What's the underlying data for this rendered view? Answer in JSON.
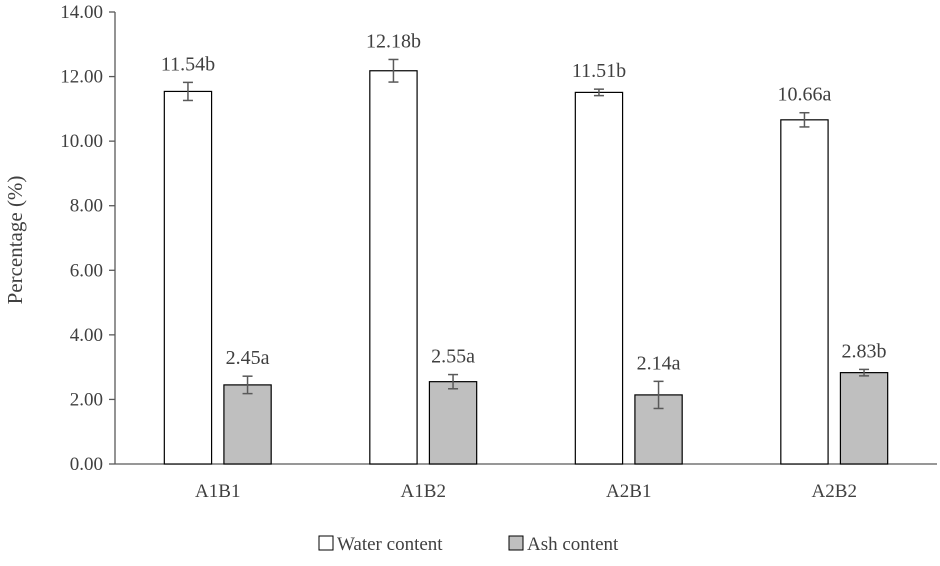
{
  "chart_data": {
    "type": "bar",
    "title": "",
    "xlabel": "",
    "ylabel": "Percentage (%)",
    "ylim": [
      0,
      14
    ],
    "yticks": [
      "0.00",
      "2.00",
      "4.00",
      "6.00",
      "8.00",
      "10.00",
      "12.00",
      "14.00"
    ],
    "categories": [
      "A1B1",
      "A1B2",
      "A2B1",
      "A2B2"
    ],
    "series": [
      {
        "name": "Water content",
        "color": "#ffffff",
        "values": [
          11.54,
          12.18,
          11.51,
          10.66
        ],
        "errors": [
          0.28,
          0.35,
          0.1,
          0.22
        ],
        "labels": [
          "11.54b",
          "12.18b",
          "11.51b",
          "10.66a"
        ]
      },
      {
        "name": "Ash content",
        "color": "#bfbfbf",
        "values": [
          2.45,
          2.55,
          2.14,
          2.83
        ],
        "errors": [
          0.27,
          0.22,
          0.42,
          0.1
        ],
        "labels": [
          "2.45a",
          "2.55a",
          "2.14a",
          "2.83b"
        ]
      }
    ],
    "grid": false,
    "legend_position": "bottom",
    "error_bars": true
  }
}
